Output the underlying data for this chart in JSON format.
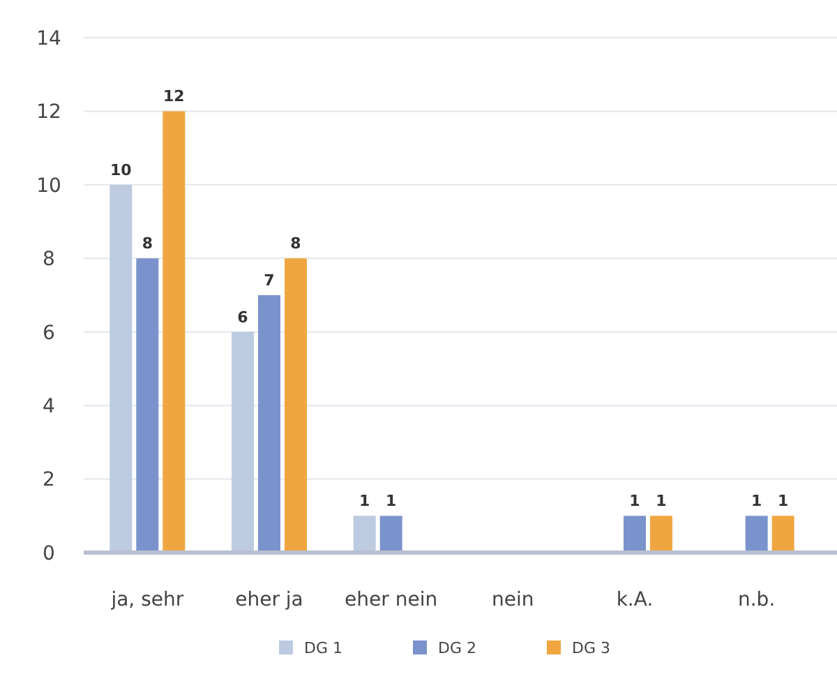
{
  "chart_data": {
    "type": "bar",
    "categories": [
      "ja, sehr",
      "eher ja",
      "eher nein",
      "nein",
      "k.A.",
      "n.b."
    ],
    "series": [
      {
        "name": "DG 1",
        "color": "#bccbe0",
        "values": [
          10,
          6,
          1,
          0,
          0,
          0
        ],
        "value_labels": [
          "10",
          "6",
          "1",
          null,
          null,
          null
        ]
      },
      {
        "name": "DG 2",
        "color": "#7b93cc",
        "values": [
          8,
          7,
          1,
          0,
          1,
          1
        ],
        "value_labels": [
          "8",
          "7",
          "1",
          null,
          "1",
          "1"
        ]
      },
      {
        "name": "DG 3",
        "color": "#f0a640",
        "values": [
          12,
          8,
          0,
          0,
          1,
          1
        ],
        "value_labels": [
          "12",
          "8",
          null,
          null,
          "1",
          "1"
        ]
      }
    ],
    "ylim": [
      0,
      14
    ],
    "yticks": [
      0,
      2,
      4,
      6,
      8,
      10,
      12,
      14
    ],
    "grid": "y",
    "legend": "bottom"
  }
}
